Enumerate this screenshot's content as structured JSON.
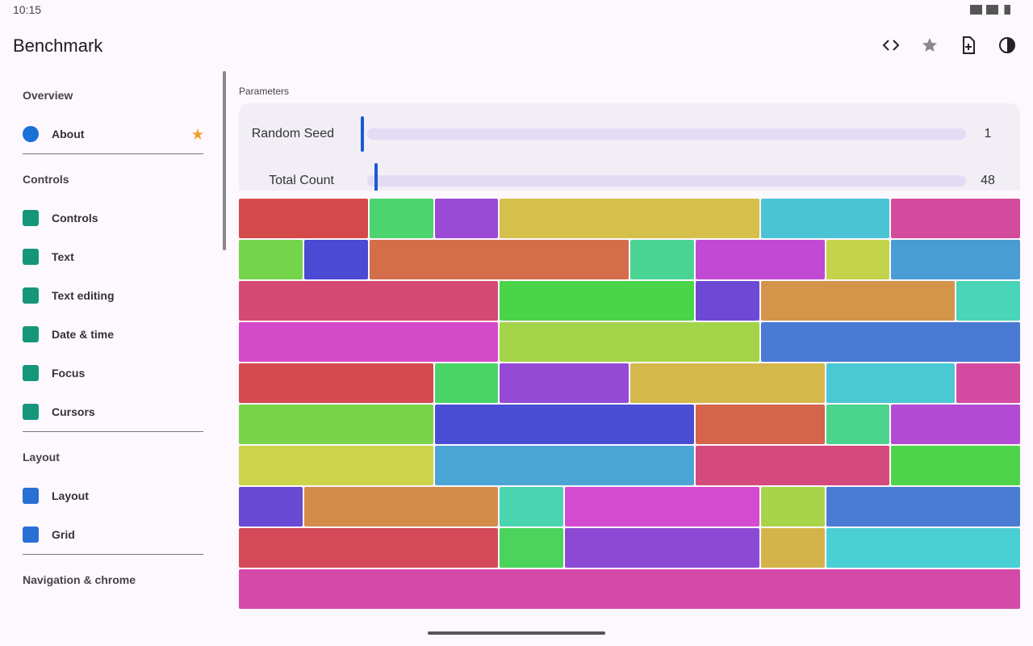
{
  "status_bar": {
    "time": "10:15"
  },
  "app_bar": {
    "title": "Benchmark"
  },
  "sidebar": {
    "sections": [
      {
        "header": "Overview",
        "items": [
          "About"
        ]
      },
      {
        "header": "Controls",
        "items": [
          "Controls",
          "Text",
          "Text editing",
          "Date & time",
          "Focus",
          "Cursors"
        ]
      },
      {
        "header": "Layout",
        "items": [
          "Layout",
          "Grid"
        ]
      },
      {
        "header": "Navigation & chrome",
        "items": []
      }
    ]
  },
  "parameters": {
    "title": "Parameters",
    "sliders": [
      {
        "label": "Random Seed",
        "value": 1
      },
      {
        "label": "Total Count",
        "value": 48
      }
    ]
  }
}
